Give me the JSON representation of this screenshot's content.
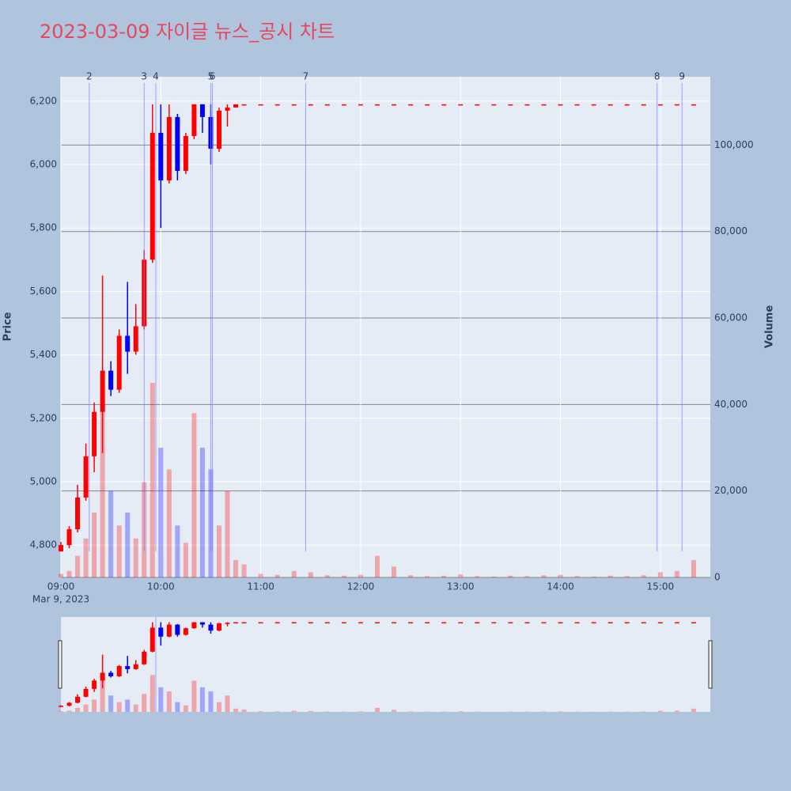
{
  "chart_data": {
    "type": "candlestick",
    "title": "2023-03-09 자이글 뉴스_공시 차트",
    "title_color": "#e5485d",
    "ylabel": "Price",
    "y2label": "Volume",
    "x_sublabel": "Mar 9, 2023",
    "xlim": [
      "09:00",
      "15:30"
    ],
    "xticks": [
      "09:00",
      "10:00",
      "11:00",
      "12:00",
      "13:00",
      "14:00",
      "15:00"
    ],
    "ylim": [
      4698,
      6277
    ],
    "yticks": [
      {
        "value": 4800,
        "label": "4,800"
      },
      {
        "value": 5000,
        "label": "5,000"
      },
      {
        "value": 5200,
        "label": "5,200"
      },
      {
        "value": 5400,
        "label": "5,400"
      },
      {
        "value": 5600,
        "label": "5,600"
      },
      {
        "value": 5800,
        "label": "5,800"
      },
      {
        "value": 6000,
        "label": "6,000"
      },
      {
        "value": 6200,
        "label": "6,200"
      }
    ],
    "y2lim": [
      0,
      115800
    ],
    "y2ticks": [
      0,
      {
        "value": 20000,
        "label": "20,000"
      },
      {
        "value": 40000,
        "label": "40,000"
      },
      {
        "value": 60000,
        "label": "60,000"
      },
      {
        "value": 80000,
        "label": "80,000"
      },
      {
        "value": 100000,
        "label": "100,000"
      }
    ],
    "increasing_color": "#ff0000",
    "decreasing_color": "#0000ff",
    "x": [
      "09:00",
      "09:05",
      "09:10",
      "09:15",
      "09:20",
      "09:25",
      "09:30",
      "09:35",
      "09:40",
      "09:45",
      "09:50",
      "09:55",
      "10:00",
      "10:05",
      "10:10",
      "10:15",
      "10:20",
      "10:25",
      "10:30",
      "10:35",
      "10:40",
      "10:45",
      "10:50",
      "11:00",
      "11:10",
      "11:20",
      "11:30",
      "11:40",
      "11:50",
      "12:00",
      "12:10",
      "12:20",
      "12:30",
      "12:40",
      "12:50",
      "13:00",
      "13:10",
      "13:20",
      "13:30",
      "13:40",
      "13:50",
      "14:00",
      "14:10",
      "14:20",
      "14:30",
      "14:40",
      "14:50",
      "15:00",
      "15:10",
      "15:20"
    ],
    "open": [
      4780,
      4800,
      4850,
      4950,
      5080,
      5220,
      5350,
      5290,
      5460,
      5410,
      5490,
      5700,
      6100,
      5950,
      6150,
      5980,
      6090,
      6190,
      6150,
      6050,
      6170,
      6180,
      6190,
      6190,
      6190,
      6190,
      6190,
      6190,
      6190,
      6190,
      6190,
      6190,
      6190,
      6190,
      6190,
      6190,
      6190,
      6190,
      6190,
      6190,
      6190,
      6190,
      6190,
      6190,
      6190,
      6190,
      6190,
      6190,
      6190,
      6190
    ],
    "high": [
      4810,
      4860,
      4990,
      5120,
      5250,
      5650,
      5380,
      5480,
      5630,
      5560,
      5730,
      6190,
      6190,
      6190,
      6160,
      6100,
      6190,
      6190,
      6190,
      6180,
      6190,
      6190,
      6190,
      6190,
      6190,
      6190,
      6190,
      6190,
      6190,
      6190,
      6190,
      6190,
      6190,
      6190,
      6190,
      6190,
      6190,
      6190,
      6190,
      6190,
      6190,
      6190,
      6190,
      6190,
      6190,
      6190,
      6190,
      6190,
      6190,
      6190
    ],
    "low": [
      4780,
      4790,
      4840,
      4940,
      5030,
      5090,
      5270,
      5280,
      5340,
      5400,
      5480,
      5690,
      5800,
      5940,
      5950,
      5970,
      6080,
      6100,
      6000,
      6040,
      6120,
      6180,
      6190,
      6190,
      6190,
      6190,
      6190,
      6190,
      6190,
      6190,
      6190,
      6190,
      6190,
      6190,
      6190,
      6190,
      6190,
      6190,
      6190,
      6190,
      6190,
      6190,
      6190,
      6190,
      6190,
      6190,
      6190,
      6190,
      6190,
      6190
    ],
    "close": [
      4800,
      4850,
      4950,
      5080,
      5220,
      5350,
      5290,
      5460,
      5410,
      5490,
      5700,
      6100,
      5950,
      6150,
      5980,
      6090,
      6190,
      6150,
      6050,
      6170,
      6180,
      6190,
      6190,
      6190,
      6190,
      6190,
      6190,
      6190,
      6190,
      6190,
      6190,
      6190,
      6190,
      6190,
      6190,
      6190,
      6190,
      6190,
      6190,
      6190,
      6190,
      6190,
      6190,
      6190,
      6190,
      6190,
      6190,
      6190,
      6190,
      6190
    ],
    "volume": [
      800,
      1500,
      5000,
      9000,
      15000,
      40000,
      20000,
      12000,
      15000,
      9000,
      22000,
      45000,
      30000,
      25000,
      12000,
      8000,
      38000,
      30000,
      25000,
      12000,
      20000,
      4000,
      3000,
      800,
      600,
      1500,
      1200,
      500,
      400,
      600,
      5000,
      2500,
      500,
      300,
      400,
      700,
      300,
      200,
      400,
      300,
      500,
      600,
      300,
      200,
      400,
      300,
      500,
      1200,
      1500,
      4000
    ],
    "events": [
      {
        "label": "2",
        "x": "09:17"
      },
      {
        "label": "3",
        "x": "09:50"
      },
      {
        "label": "4",
        "x": "09:57"
      },
      {
        "label": "5",
        "x": "10:30"
      },
      {
        "label": "6",
        "x": "10:31"
      },
      {
        "label": "7",
        "x": "11:27"
      },
      {
        "label": "8",
        "x": "14:58"
      },
      {
        "label": "9",
        "x": "15:13"
      }
    ]
  }
}
